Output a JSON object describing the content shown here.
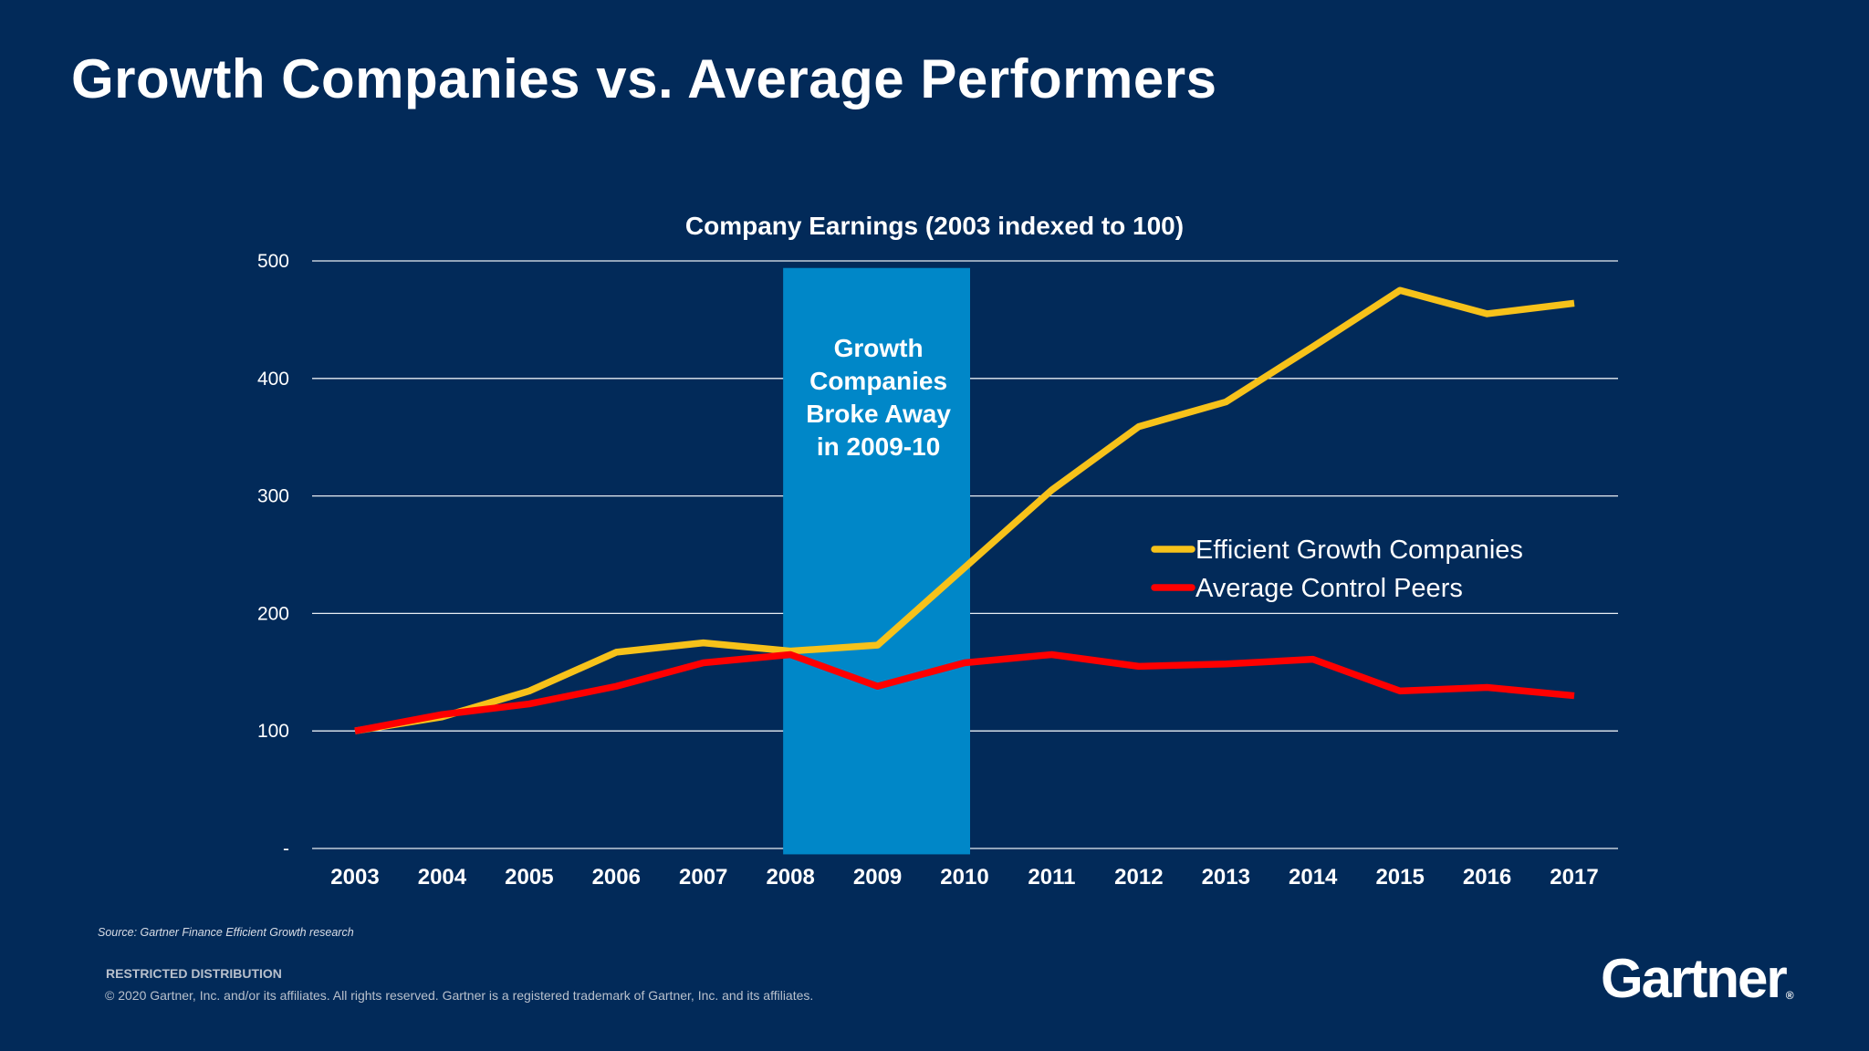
{
  "slide": {
    "title": "Growth Companies vs. Average Performers",
    "source": "Source: Gartner Finance Efficient Growth research",
    "restricted": "RESTRICTED DISTRIBUTION",
    "copyright": "© 2020 Gartner, Inc. and/or its affiliates. All rights reserved. Gartner is a registered trademark of Gartner, Inc. and its affiliates.",
    "logo": "Gartner",
    "logo_mark": "®"
  },
  "chart_data": {
    "type": "line",
    "title": "Company Earnings (2003 indexed to 100)",
    "xlabel": "",
    "ylabel": "",
    "categories": [
      "2003",
      "2004",
      "2005",
      "2006",
      "2007",
      "2008",
      "2009",
      "2010",
      "2011",
      "2012",
      "2013",
      "2014",
      "2015",
      "2016",
      "2017"
    ],
    "ylim": [
      0,
      500
    ],
    "yticks": [
      0,
      100,
      200,
      300,
      400,
      500
    ],
    "ytick_labels": [
      "-",
      "100",
      "200",
      "300",
      "400",
      "500"
    ],
    "grid": true,
    "legend_position": "right-middle",
    "series": [
      {
        "name": "Efficient Growth Companies",
        "color": "#f7c21a",
        "values": [
          100,
          112,
          134,
          167,
          175,
          168,
          173,
          239,
          305,
          359,
          380,
          427,
          475,
          455,
          464
        ]
      },
      {
        "name": "Average Control Peers",
        "color": "#ff0000",
        "values": [
          100,
          114,
          123,
          138,
          158,
          165,
          138,
          158,
          165,
          155,
          157,
          161,
          134,
          137,
          130
        ]
      }
    ],
    "highlight_band": {
      "from": "2008",
      "to": "2010",
      "color": "#0087c8",
      "label_lines": [
        "Growth",
        "Companies",
        "Broke Away",
        "in 2009-10"
      ]
    },
    "background": "#022a59"
  }
}
